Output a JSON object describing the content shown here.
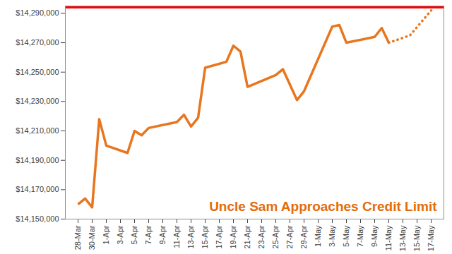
{
  "chart_data": {
    "type": "line",
    "categories": [
      "28-Mar",
      null,
      "30-Mar",
      null,
      "1-Apr",
      null,
      "3-Apr",
      null,
      "5-Apr",
      null,
      "7-Apr",
      null,
      "9-Apr",
      null,
      "11-Apr",
      null,
      "13-Apr",
      null,
      "15-Apr",
      null,
      "17-Apr",
      null,
      "19-Apr",
      null,
      "21-Apr",
      null,
      "23-Apr",
      null,
      "25-Apr",
      null,
      "27-Apr",
      null,
      "29-Apr",
      null,
      "1-May",
      null,
      "3-May",
      null,
      "5-May",
      null,
      "7-May",
      null,
      "9-May",
      null,
      "11-May",
      null,
      "13-May",
      null,
      "15-May",
      null,
      "17-May"
    ],
    "series": [
      {
        "color": "#e8761e",
        "line_style": "solid",
        "values": [
          14160000,
          14164000,
          14158000,
          14218000,
          14200000,
          null,
          null,
          14195000,
          14210000,
          14207000,
          14212000,
          null,
          null,
          null,
          14216000,
          14221000,
          14213000,
          14219000,
          14253000,
          null,
          null,
          14257000,
          14268000,
          14264000,
          14240000,
          null,
          null,
          null,
          14248000,
          14252000,
          null,
          14231000,
          14237000,
          null,
          null,
          null,
          14281000,
          14282000,
          14270000,
          null,
          null,
          null,
          14274000,
          14280000,
          14270000,
          null,
          null,
          null,
          null,
          null,
          null
        ]
      },
      {
        "color": "#e8761e",
        "line_style": "dotted",
        "values": [
          null,
          null,
          null,
          null,
          null,
          null,
          null,
          null,
          null,
          null,
          null,
          null,
          null,
          null,
          null,
          null,
          null,
          null,
          null,
          null,
          null,
          null,
          null,
          null,
          null,
          null,
          null,
          null,
          null,
          null,
          null,
          null,
          null,
          null,
          null,
          null,
          null,
          null,
          null,
          null,
          null,
          null,
          null,
          null,
          14270000,
          null,
          null,
          14275000,
          null,
          null,
          14292000
        ]
      }
    ],
    "reference_lines": [
      {
        "value": 14294000,
        "color": "#ff0000"
      }
    ],
    "annotations": [
      {
        "text": "Uncle Sam Approaches Credit Limit",
        "color": "#e46c0a"
      }
    ],
    "ylim": [
      14150000,
      14295000
    ],
    "yticks": [
      {
        "value": 14150000,
        "label": "$14,150,000"
      },
      {
        "value": 14170000,
        "label": "$14,170,000"
      },
      {
        "value": 14190000,
        "label": "$14,190,000"
      },
      {
        "value": 14210000,
        "label": "$14,210,000"
      },
      {
        "value": 14230000,
        "label": "$14,230,000"
      },
      {
        "value": 14250000,
        "label": "$14,250,000"
      },
      {
        "value": 14270000,
        "label": "$14,270,000"
      },
      {
        "value": 14290000,
        "label": "$14,290,000"
      }
    ],
    "grid": false
  }
}
